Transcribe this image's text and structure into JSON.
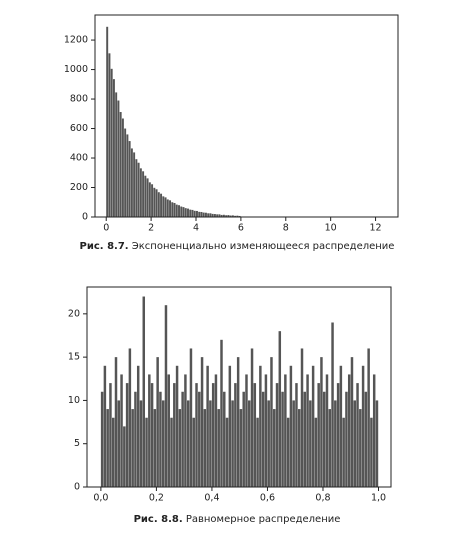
{
  "chart_data": [
    {
      "type": "histogram",
      "color": "#555555",
      "bins": [
        0,
        0.1,
        0.2,
        0.3,
        0.4,
        0.5,
        0.6,
        0.7,
        0.8,
        0.9,
        1,
        1.1,
        1.2,
        1.3,
        1.4,
        1.5,
        1.6,
        1.7,
        1.8,
        1.9,
        2,
        2.1,
        2.2,
        2.3,
        2.4,
        2.5,
        2.6,
        2.7,
        2.8,
        2.9,
        3,
        3.1,
        3.2,
        3.3,
        3.4,
        3.5,
        3.6,
        3.7,
        3.8,
        3.9,
        4,
        4.1,
        4.2,
        4.3,
        4.4,
        4.5,
        4.6,
        4.7,
        4.8,
        4.9,
        5,
        5.1,
        5.2,
        5.3,
        5.4,
        5.5,
        5.6,
        5.7,
        5.8,
        5.9,
        6
      ],
      "values": [
        1290,
        1110,
        1005,
        935,
        845,
        790,
        712,
        668,
        600,
        560,
        515,
        465,
        438,
        392,
        368,
        330,
        310,
        280,
        262,
        235,
        222,
        198,
        188,
        168,
        158,
        140,
        133,
        119,
        113,
        100,
        95,
        84,
        80,
        71,
        67,
        60,
        57,
        50,
        48,
        42,
        41,
        35,
        34,
        30,
        29,
        25,
        25,
        21,
        20,
        18,
        18,
        14,
        15,
        12,
        13,
        10,
        11,
        8,
        9,
        7
      ],
      "xlim": [
        -0.5,
        13
      ],
      "ylim": [
        0,
        1370
      ],
      "xticks": [
        0,
        2,
        4,
        6,
        8,
        10,
        12
      ],
      "yticks": [
        0,
        200,
        400,
        600,
        800,
        1000,
        1200
      ],
      "caption_label": "Рис. 8.7.",
      "caption": "Экспоненциально изменяющееся распределение"
    },
    {
      "type": "histogram",
      "color": "#555555",
      "bins": [
        0,
        0.01,
        0.02,
        0.03,
        0.04,
        0.05,
        0.06,
        0.07,
        0.08,
        0.09,
        0.1,
        0.11,
        0.12,
        0.13,
        0.14,
        0.15,
        0.16,
        0.17,
        0.18,
        0.19,
        0.2,
        0.21,
        0.22,
        0.23,
        0.24,
        0.25,
        0.26,
        0.27,
        0.28,
        0.29,
        0.3,
        0.31,
        0.32,
        0.33,
        0.34,
        0.35,
        0.36,
        0.37,
        0.38,
        0.39,
        0.4,
        0.41,
        0.42,
        0.43,
        0.44,
        0.45,
        0.46,
        0.47,
        0.48,
        0.49,
        0.5,
        0.51,
        0.52,
        0.53,
        0.54,
        0.55,
        0.56,
        0.57,
        0.58,
        0.59,
        0.6,
        0.61,
        0.62,
        0.63,
        0.64,
        0.65,
        0.66,
        0.67,
        0.68,
        0.69,
        0.7,
        0.71,
        0.72,
        0.73,
        0.74,
        0.75,
        0.76,
        0.77,
        0.78,
        0.79,
        0.8,
        0.81,
        0.82,
        0.83,
        0.84,
        0.85,
        0.86,
        0.87,
        0.88,
        0.89,
        0.9,
        0.91,
        0.92,
        0.93,
        0.94,
        0.95,
        0.96,
        0.97,
        0.98,
        0.99,
        1
      ],
      "values": [
        11,
        14,
        9,
        12,
        8,
        15,
        10,
        13,
        7,
        12,
        16,
        9,
        11,
        14,
        10,
        22,
        8,
        13,
        12,
        9,
        15,
        11,
        10,
        21,
        13,
        8,
        12,
        14,
        9,
        11,
        13,
        10,
        16,
        8,
        12,
        11,
        15,
        9,
        14,
        10,
        12,
        13,
        9,
        17,
        11,
        8,
        14,
        10,
        12,
        15,
        9,
        11,
        13,
        10,
        16,
        12,
        8,
        14,
        11,
        13,
        10,
        15,
        9,
        12,
        18,
        11,
        13,
        8,
        14,
        10,
        12,
        9,
        16,
        11,
        13,
        10,
        14,
        8,
        12,
        15,
        11,
        13,
        9,
        19,
        10,
        12,
        14,
        8,
        11,
        13,
        15,
        10,
        12,
        9,
        14,
        11,
        16,
        8,
        13,
        10
      ],
      "xlim": [
        -0.05,
        1.045
      ],
      "ylim": [
        0,
        23.1
      ],
      "xticks": [
        {
          "value": 0,
          "label": "0,0"
        },
        {
          "value": 0.2,
          "label": "0,2"
        },
        {
          "value": 0.4,
          "label": "0,4"
        },
        {
          "value": 0.6,
          "label": "0,6"
        },
        {
          "value": 0.8,
          "label": "0,8"
        },
        {
          "value": 1,
          "label": "1,0"
        }
      ],
      "yticks": [
        0,
        5,
        10,
        15,
        20
      ],
      "caption_label": "Рис. 8.8.",
      "caption": "Равномерное распределение"
    }
  ]
}
